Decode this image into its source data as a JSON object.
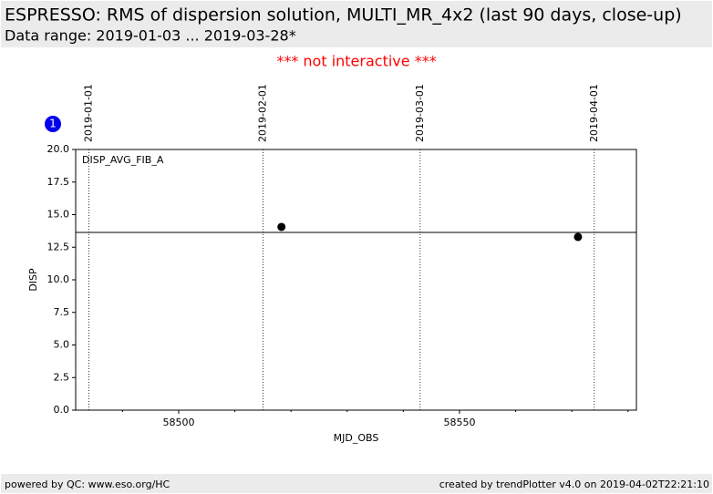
{
  "header": {
    "title": "ESPRESSO: RMS of dispersion solution, MULTI_MR_4x2 (last 90 days, close-up)",
    "subtitle": "Data range: 2019-01-03 ... 2019-03-28*"
  },
  "note": "*** not interactive ***",
  "badge": "1",
  "chart_data": {
    "type": "scatter",
    "panel_label": "DISP_AVG_FIB_A",
    "xlabel": "MJD_OBS",
    "ylabel": "DISP",
    "xlim": [
      58481.66,
      58581.5
    ],
    "xticks": [
      58500,
      58550
    ],
    "minor_xticks": [
      58490,
      58510,
      58520,
      58530,
      58540,
      58560,
      58570,
      58580
    ],
    "ylim": [
      0,
      20
    ],
    "yticks": [
      {
        "value": 0,
        "label": "0.0"
      },
      2.5,
      {
        "value": 5,
        "label": "5.0"
      },
      7.5,
      {
        "value": 10,
        "label": "10.0"
      },
      12.5,
      {
        "value": 15,
        "label": "15.0"
      },
      17.5,
      {
        "value": 20,
        "label": "20.0"
      }
    ],
    "series": [
      {
        "name": "DISP_AVG_FIB_A",
        "color": "#000000",
        "x": [
          58518.3,
          58571.1
        ],
        "values": [
          14.06,
          13.29
        ]
      }
    ],
    "average": 13.64,
    "date_lines": [
      {
        "value": 58484,
        "label": "2019-01-01"
      },
      {
        "value": 58515,
        "label": "2019-02-01"
      },
      {
        "value": 58543,
        "label": "2019-03-01"
      },
      {
        "value": 58574,
        "label": "2019-04-01"
      }
    ]
  },
  "footer": {
    "left": "powered by QC: www.eso.org/HC",
    "right": "created by trendPlotter v4.0 on 2019-04-02T22:21:10"
  }
}
